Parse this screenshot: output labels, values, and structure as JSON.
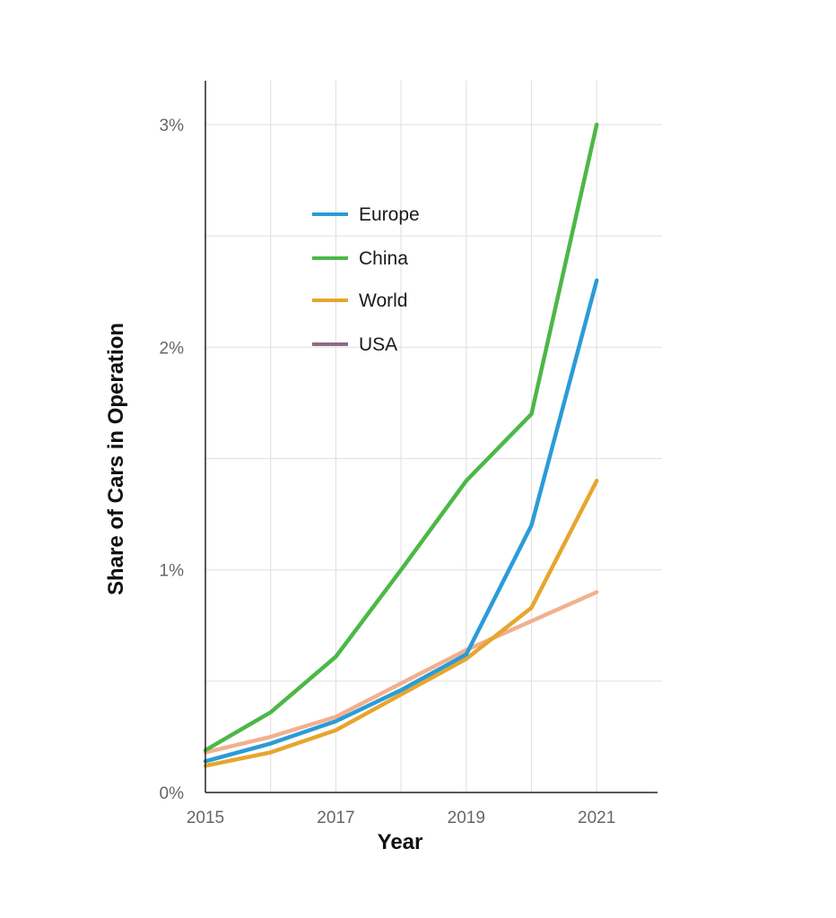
{
  "chart_data": {
    "type": "line",
    "title": "",
    "xlabel": "Year",
    "ylabel": "Share of Cars in Operation",
    "x": [
      2015,
      2016,
      2017,
      2018,
      2019,
      2020,
      2021
    ],
    "x_tick_labels": [
      "2015",
      "2017",
      "2019",
      "2021"
    ],
    "x_ticks": [
      2015,
      2017,
      2019,
      2021
    ],
    "xlim": [
      2015,
      2021.9
    ],
    "y_tick_labels": [
      "0%",
      "1%",
      "2%",
      "3%"
    ],
    "y_ticks": [
      0,
      1,
      2,
      3
    ],
    "ylim": [
      0,
      3.2
    ],
    "unit": "%",
    "grid": true,
    "legend_position": "upper-left inside plot",
    "series": [
      {
        "name": "Europe",
        "color": "#2b9bd8",
        "values": [
          0.14,
          0.22,
          0.32,
          0.46,
          0.62,
          1.2,
          2.3
        ]
      },
      {
        "name": "China",
        "color": "#4cb847",
        "values": [
          0.19,
          0.36,
          0.61,
          1.0,
          1.4,
          1.7,
          3.0
        ]
      },
      {
        "name": "World",
        "color": "#e6a62e",
        "values": [
          0.12,
          0.18,
          0.28,
          0.44,
          0.6,
          0.83,
          1.4
        ]
      },
      {
        "name": "USA",
        "color": "#8d6b84",
        "plot_color": "#f2b08e",
        "values": [
          0.18,
          0.25,
          0.34,
          0.49,
          0.64,
          0.77,
          0.9
        ]
      }
    ]
  }
}
